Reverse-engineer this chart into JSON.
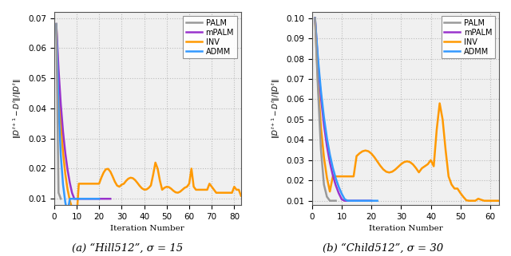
{
  "left_plot": {
    "xlabel": "Iteration Number",
    "ylabel": "||D^{t+1} - D^t|| / ||D^t||",
    "xlim": [
      0,
      83
    ],
    "ylim": [
      0.008,
      0.072
    ],
    "yticks": [
      0.01,
      0.02,
      0.03,
      0.04,
      0.05,
      0.06,
      0.07
    ],
    "xticks": [
      0,
      10,
      20,
      30,
      40,
      50,
      60,
      70,
      80
    ],
    "palm_color": "#999999",
    "mpalm_color": "#9933CC",
    "inv_color": "#FF9900",
    "admm_color": "#3399FF",
    "bg_color": "#f0f0f0"
  },
  "right_plot": {
    "xlabel": "Iteration Number",
    "ylabel": "||D^{t+1} - D^t|| / ||D^t||",
    "xlim": [
      0,
      63
    ],
    "ylim": [
      0.008,
      0.103
    ],
    "yticks": [
      0.01,
      0.02,
      0.03,
      0.04,
      0.05,
      0.06,
      0.07,
      0.08,
      0.09,
      0.1
    ],
    "xticks": [
      0,
      10,
      20,
      30,
      40,
      50,
      60
    ],
    "palm_color": "#999999",
    "mpalm_color": "#9933CC",
    "inv_color": "#FF9900",
    "admm_color": "#3399FF",
    "bg_color": "#f0f0f0"
  },
  "caption_left": "(a) “Hill512”, σ = 15",
  "caption_right": "(b) “Child512”, σ = 30"
}
